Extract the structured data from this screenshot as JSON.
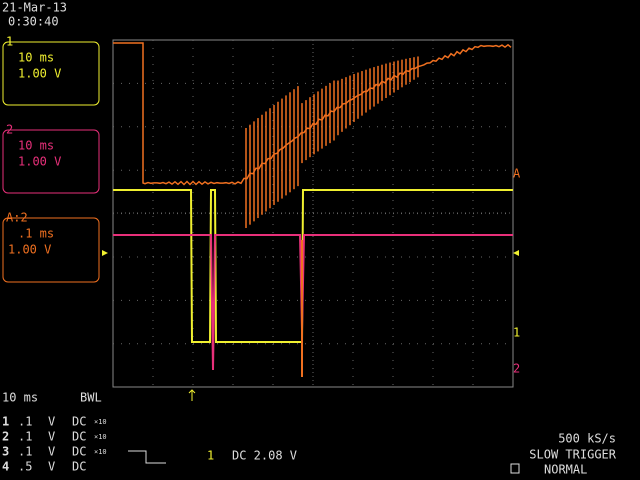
{
  "header": {
    "date": "21-Mar-13",
    "time": "0:30:40"
  },
  "channel_boxes": [
    {
      "label": "1",
      "timebase": "10 ms",
      "scale": "1.00 V"
    },
    {
      "label": "2",
      "timebase": "10 ms",
      "scale": "1.00 V"
    },
    {
      "label": "A:2",
      "timebase": ".1 ms",
      "scale": "1.00 V"
    }
  ],
  "trace_markers": {
    "a": "A",
    "ch1": "1",
    "ch2": "2"
  },
  "footer": {
    "timebase": "10 ms",
    "bwl": "BWL",
    "channels": [
      {
        "number": "1",
        "scale": ".1",
        "unit": "V",
        "coupling": "DC",
        "probe": "×10"
      },
      {
        "number": "2",
        "scale": ".1",
        "unit": "V",
        "coupling": "DC",
        "probe": "×10"
      },
      {
        "number": "3",
        "scale": ".1",
        "unit": "V",
        "coupling": "DC",
        "probe": "×10"
      },
      {
        "number": "4",
        "scale": ".5",
        "unit": "V",
        "coupling": "DC"
      }
    ],
    "trigger_channel": "1",
    "trigger_level": "DC 2.08 V",
    "sample_rate": "500 kS/s",
    "trigger_mode": "SLOW TRIGGER",
    "acquisition": "NORMAL"
  }
}
